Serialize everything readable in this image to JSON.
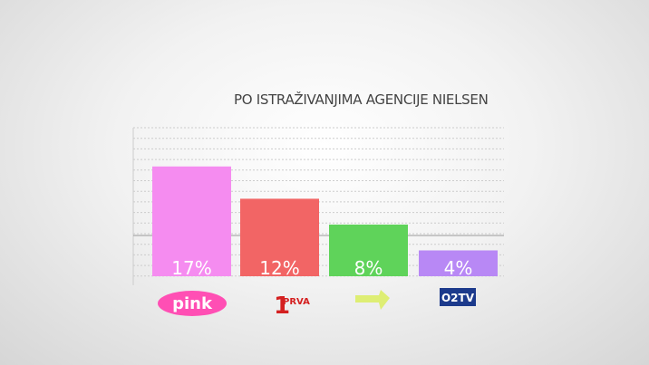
{
  "chart_data": {
    "type": "bar",
    "title": "PO ISTRAŽIVANJIMA AGENCIJE NIELSEN",
    "categories": [
      "pink",
      "PRVA",
      "",
      "O2TV"
    ],
    "values": [
      17,
      12,
      8,
      4
    ],
    "value_labels": [
      "17%",
      "12%",
      "8%",
      "4%"
    ],
    "colors": [
      "#f58cf0",
      "#f26565",
      "#5fd35a",
      "#b888f5"
    ],
    "ylim": [
      0,
      23
    ],
    "grid": true,
    "xlabel": "",
    "ylabel": ""
  }
}
